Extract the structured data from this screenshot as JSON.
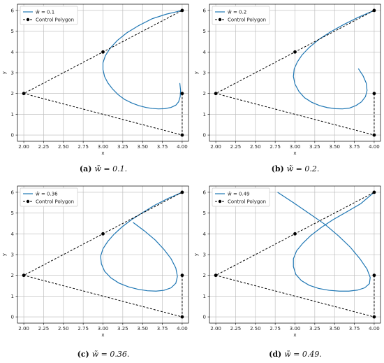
{
  "chart_data": [
    {
      "type": "line",
      "panel": "a",
      "caption_label": "(a)",
      "caption_text": "w̃ = 0.1.",
      "xlabel": "x",
      "ylabel": "y",
      "xlim": [
        1.92,
        4.08
      ],
      "ylim": [
        -0.3,
        6.3
      ],
      "xticks": [
        "2.00",
        "2.25",
        "2.50",
        "2.75",
        "3.00",
        "3.25",
        "3.50",
        "3.75",
        "4.00"
      ],
      "yticks": [
        "0",
        "1",
        "2",
        "3",
        "4",
        "5",
        "6"
      ],
      "grid": true,
      "legend_position": "upper-left",
      "series": [
        {
          "name": "ŵ = 0.1",
          "color": "#1f77b4",
          "x": [
            3.97,
            3.98,
            3.975,
            3.955,
            3.92,
            3.86,
            3.78,
            3.7,
            3.62,
            3.54,
            3.45,
            3.36,
            3.27,
            3.19,
            3.12,
            3.06,
            3.02,
            3.0,
            3.0,
            3.03,
            3.09,
            3.18,
            3.3,
            3.45,
            3.62,
            3.8,
            4.0
          ],
          "y": [
            2.5,
            2.15,
            1.85,
            1.6,
            1.44,
            1.33,
            1.27,
            1.26,
            1.28,
            1.33,
            1.42,
            1.55,
            1.72,
            1.95,
            2.22,
            2.52,
            2.82,
            3.15,
            3.48,
            3.82,
            4.18,
            4.55,
            4.92,
            5.27,
            5.6,
            5.82,
            6.0
          ]
        },
        {
          "name": "Control Polygon",
          "color": "#000000",
          "x": [
            4,
            4,
            2,
            3,
            4
          ],
          "y": [
            2,
            0,
            2,
            4,
            6
          ]
        }
      ]
    },
    {
      "type": "line",
      "panel": "b",
      "caption_label": "(b)",
      "caption_text": "w̃ = 0.2.",
      "xlabel": "x",
      "ylabel": "y",
      "xlim": [
        1.92,
        4.08
      ],
      "ylim": [
        -0.3,
        6.3
      ],
      "xticks": [
        "2.00",
        "2.25",
        "2.50",
        "2.75",
        "3.00",
        "3.25",
        "3.50",
        "3.75",
        "4.00"
      ],
      "yticks": [
        "0",
        "1",
        "2",
        "3",
        "4",
        "5",
        "6"
      ],
      "grid": true,
      "legend_position": "upper-left",
      "series": [
        {
          "name": "ŵ = 0.2",
          "color": "#1f77b4",
          "x": [
            3.8,
            3.86,
            3.9,
            3.91,
            3.89,
            3.84,
            3.77,
            3.69,
            3.6,
            3.51,
            3.41,
            3.31,
            3.21,
            3.12,
            3.05,
            3.0,
            2.98,
            2.99,
            3.03,
            3.09,
            3.18,
            3.3,
            3.45,
            3.62,
            3.8,
            4.0
          ],
          "y": [
            3.2,
            2.85,
            2.5,
            2.15,
            1.85,
            1.6,
            1.42,
            1.3,
            1.26,
            1.27,
            1.32,
            1.42,
            1.58,
            1.8,
            2.1,
            2.45,
            2.82,
            3.18,
            3.52,
            3.86,
            4.22,
            4.6,
            4.97,
            5.33,
            5.67,
            6.0
          ]
        },
        {
          "name": "Control Polygon",
          "color": "#000000",
          "x": [
            4,
            4,
            2,
            3,
            4
          ],
          "y": [
            2,
            0,
            2,
            4,
            6
          ]
        }
      ]
    },
    {
      "type": "line",
      "panel": "c",
      "caption_label": "(c)",
      "caption_text": "w̃ = 0.36.",
      "xlabel": "x",
      "ylabel": "y",
      "xlim": [
        1.92,
        4.08
      ],
      "ylim": [
        -0.3,
        6.3
      ],
      "xticks": [
        "2.00",
        "2.25",
        "2.50",
        "2.75",
        "3.00",
        "3.25",
        "3.50",
        "3.75",
        "4.00"
      ],
      "yticks": [
        "0",
        "1",
        "2",
        "3",
        "4",
        "5",
        "6"
      ],
      "grid": true,
      "legend_position": "upper-left",
      "series": [
        {
          "name": "ŵ = 0.36",
          "color": "#1f77b4",
          "x": [
            3.38,
            3.52,
            3.66,
            3.77,
            3.86,
            3.92,
            3.94,
            3.92,
            3.86,
            3.77,
            3.67,
            3.56,
            3.44,
            3.32,
            3.2,
            3.1,
            3.02,
            2.98,
            2.97,
            3.0,
            3.06,
            3.14,
            3.24,
            3.36,
            3.5,
            3.65,
            3.82,
            4.0
          ],
          "y": [
            4.55,
            4.15,
            3.7,
            3.25,
            2.8,
            2.35,
            1.95,
            1.62,
            1.4,
            1.28,
            1.24,
            1.26,
            1.33,
            1.45,
            1.63,
            1.88,
            2.2,
            2.55,
            2.92,
            3.28,
            3.63,
            3.98,
            4.33,
            4.68,
            5.02,
            5.37,
            5.7,
            6.0
          ]
        },
        {
          "name": "Control Polygon",
          "color": "#000000",
          "x": [
            4,
            4,
            2,
            3,
            4
          ],
          "y": [
            2,
            0,
            2,
            4,
            6
          ]
        }
      ]
    },
    {
      "type": "line",
      "panel": "d",
      "caption_label": "(d)",
      "caption_text": "w̃ = 0.49.",
      "xlabel": "x",
      "ylabel": "y",
      "xlim": [
        1.92,
        4.08
      ],
      "ylim": [
        -0.3,
        6.3
      ],
      "xticks": [
        "2.00",
        "2.25",
        "2.50",
        "2.75",
        "3.00",
        "3.25",
        "3.50",
        "3.75",
        "4.00"
      ],
      "yticks": [
        "0",
        "1",
        "2",
        "3",
        "4",
        "5",
        "6"
      ],
      "grid": true,
      "legend_position": "upper-left",
      "series": [
        {
          "name": "ŵ = 0.49",
          "color": "#1f77b4",
          "x": [
            2.78,
            2.98,
            3.18,
            3.38,
            3.55,
            3.7,
            3.82,
            3.91,
            3.95,
            3.94,
            3.88,
            3.79,
            3.68,
            3.56,
            3.43,
            3.3,
            3.18,
            3.08,
            3.01,
            2.98,
            2.98,
            3.02,
            3.1,
            3.2,
            3.33,
            3.48,
            3.65,
            3.83,
            4.0
          ],
          "y": [
            6.0,
            5.5,
            4.98,
            4.45,
            3.9,
            3.35,
            2.8,
            2.3,
            1.9,
            1.6,
            1.4,
            1.29,
            1.24,
            1.24,
            1.28,
            1.37,
            1.52,
            1.75,
            2.05,
            2.42,
            2.8,
            3.18,
            3.55,
            3.92,
            4.3,
            4.68,
            5.05,
            5.45,
            6.0
          ]
        },
        {
          "name": "Control Polygon",
          "color": "#000000",
          "x": [
            4,
            4,
            2,
            3,
            4
          ],
          "y": [
            2,
            0,
            2,
            4,
            6
          ]
        }
      ]
    }
  ]
}
